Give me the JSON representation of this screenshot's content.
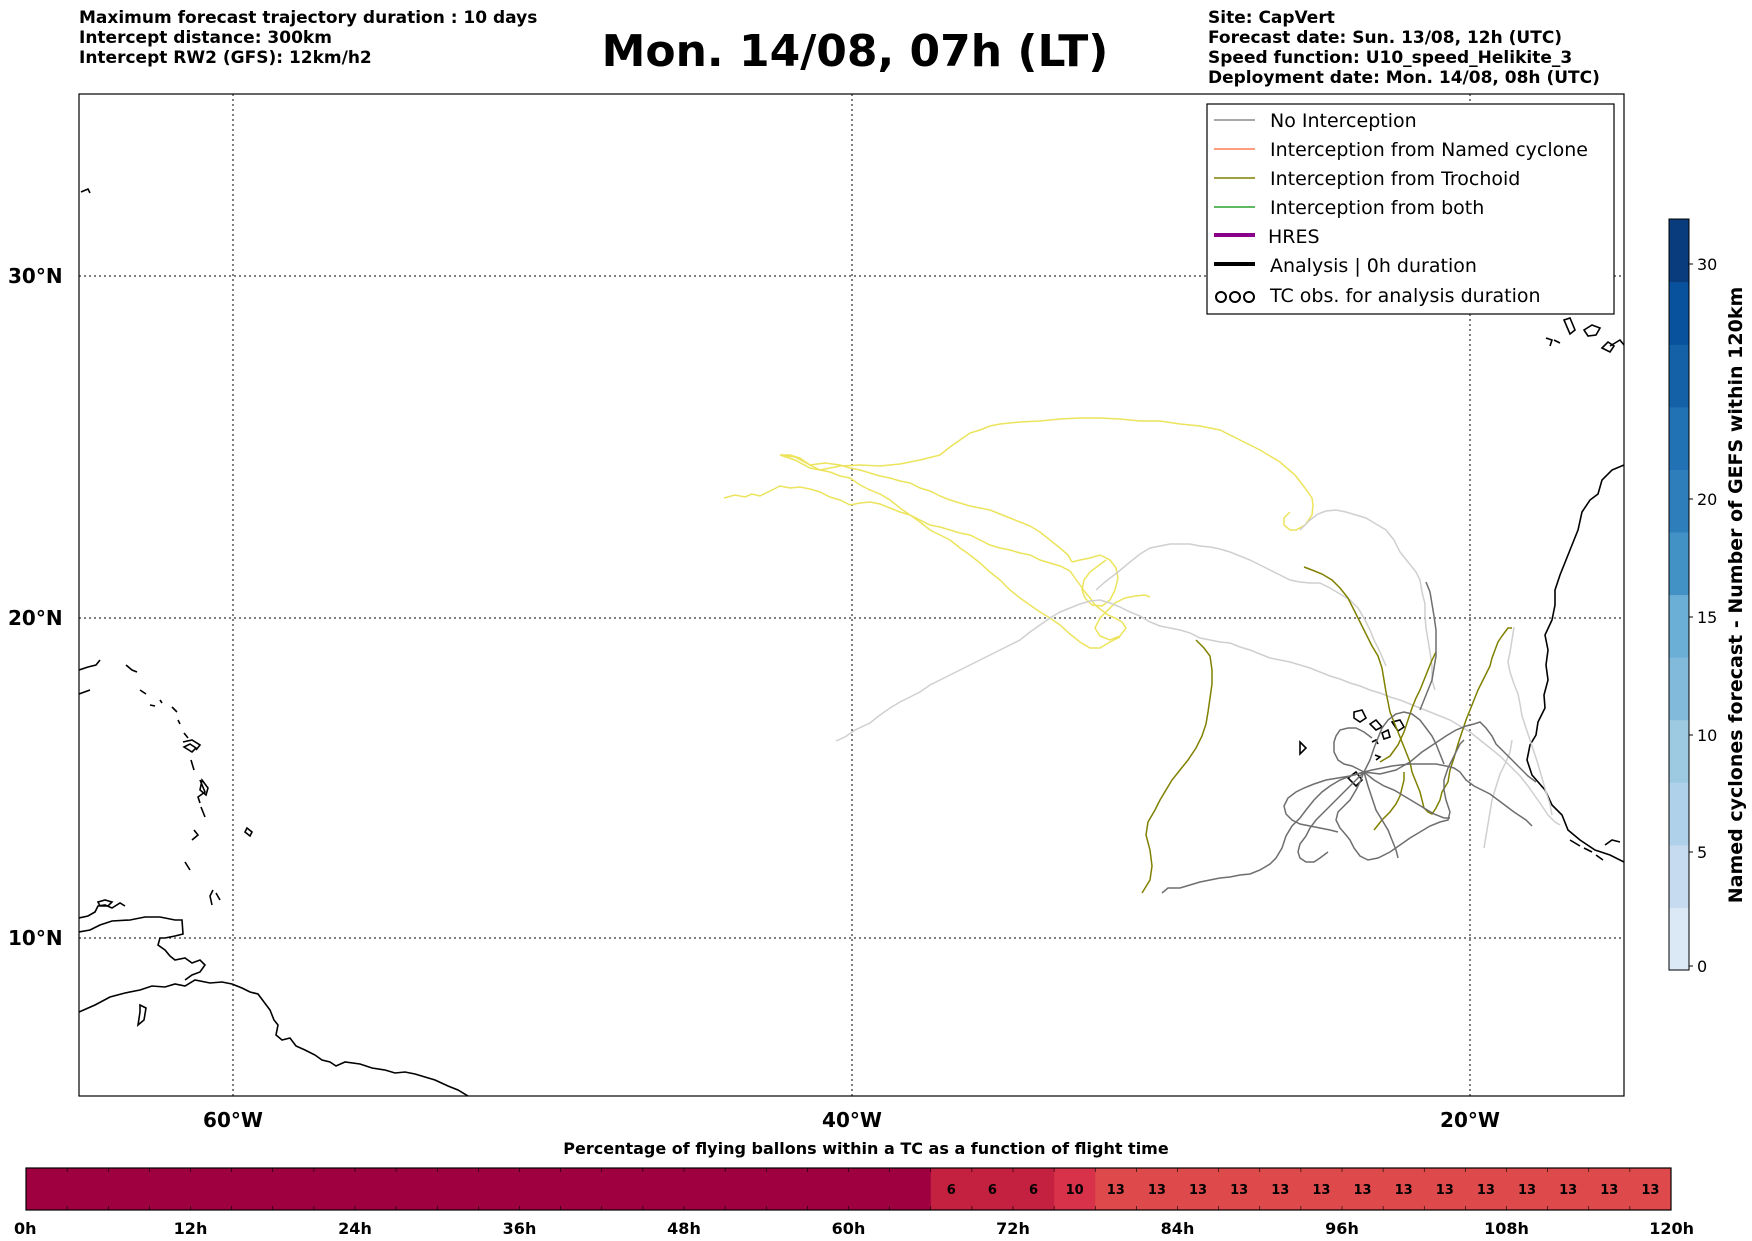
{
  "header": {
    "left": [
      "Maximum forecast trajectory duration : 10 days",
      "Intercept distance: 300km",
      "Intercept RW2 (GFS):  12km/h2"
    ],
    "title": "Mon. 14/08, 07h (LT)",
    "right": [
      "Site: CapVert",
      "Forecast date: Sun. 13/08, 12h (UTC)",
      "Speed function: U10_speed_Helikite_3",
      "Deployment date: Mon. 14/08, 08h (UTC)"
    ]
  },
  "map": {
    "lat_labels": [
      "30°N",
      "20°N",
      "10°N"
    ],
    "lon_labels": [
      "60°W",
      "40°W",
      "20°W"
    ],
    "grid": "dotted",
    "colors": {
      "no_interception": "#7f7f7f",
      "no_interception_light": "#cccccc",
      "named_cyclone": "#ff7f50",
      "trochoid": "#808000",
      "trochoid_light": "#ece45c",
      "both": "#2ca02c",
      "hres": "#8b008b",
      "analysis": "#000000",
      "coast": "#000000"
    }
  },
  "legend": {
    "items": [
      {
        "label": "No Interception",
        "style": "thin",
        "color": "#8c8c8c"
      },
      {
        "label": "Interception from Named cyclone",
        "style": "thin",
        "color": "#ff7f50"
      },
      {
        "label": "Interception from Trochoid",
        "style": "thin",
        "color": "#808000"
      },
      {
        "label": "Interception from both",
        "style": "thin",
        "color": "#2ca02c"
      },
      {
        "label": "HRES",
        "style": "thick",
        "color": "#8b008b"
      },
      {
        "label": "Analysis | 0h duration",
        "style": "thick",
        "color": "#000000"
      },
      {
        "label": "TC obs. for analysis duration",
        "style": "tc-icon",
        "color": "#000000"
      }
    ]
  },
  "colorbar_right": {
    "label": "Named cyclones forecast - Number of GEFS within 120km",
    "ticks": [
      "0",
      "5",
      "10",
      "15",
      "20",
      "30"
    ],
    "palette": [
      "#dbe9f6",
      "#c6dbef",
      "#b0d1ea",
      "#9ecae1",
      "#82badb",
      "#6baed6",
      "#4292c6",
      "#2f7ebc",
      "#2171b5",
      "#1461a8",
      "#08519c",
      "#083c7d"
    ]
  },
  "bottom_bar": {
    "label": "Percentage of flying ballons within a TC as a function of flight time",
    "time_labels": [
      "0h",
      "12h",
      "24h",
      "36h",
      "48h",
      "60h",
      "72h",
      "84h",
      "96h",
      "108h",
      "120h"
    ],
    "cells": [
      "",
      "",
      "",
      "",
      "",
      "",
      "",
      "",
      "",
      "",
      "",
      "",
      "",
      "",
      "",
      "",
      "",
      "",
      "",
      "",
      "",
      "",
      "6",
      "6",
      "6",
      "10",
      "13",
      "13",
      "13",
      "13",
      "13",
      "13",
      "13",
      "13",
      "13",
      "13",
      "13",
      "13",
      "13",
      "13"
    ],
    "colors": {
      "zero": "#9e0040",
      "six": "#c4203f",
      "ten": "#d8314a",
      "thirteen": "#de4a4b"
    }
  }
}
